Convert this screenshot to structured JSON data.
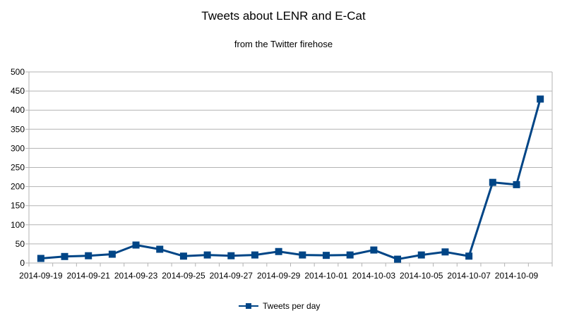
{
  "chart_data": {
    "type": "line",
    "title": "Tweets about LENR and E-Cat",
    "subtitle": "from the Twitter firehose",
    "xlabel": "",
    "ylabel": "",
    "ylim": [
      0,
      500
    ],
    "yticks": [
      0,
      50,
      100,
      150,
      200,
      250,
      300,
      350,
      400,
      450,
      500
    ],
    "grid": true,
    "legend_position": "bottom",
    "x": [
      "2014-09-19",
      "2014-09-20",
      "2014-09-21",
      "2014-09-22",
      "2014-09-23",
      "2014-09-24",
      "2014-09-25",
      "2014-09-26",
      "2014-09-27",
      "2014-09-28",
      "2014-09-29",
      "2014-09-30",
      "2014-10-01",
      "2014-10-02",
      "2014-10-03",
      "2014-10-04",
      "2014-10-05",
      "2014-10-06",
      "2014-10-07",
      "2014-10-08",
      "2014-10-09",
      "2014-10-10"
    ],
    "xtick_labels": [
      "2014-09-19",
      "2014-09-21",
      "2014-09-23",
      "2014-09-25",
      "2014-09-27",
      "2014-09-29",
      "2014-10-01",
      "2014-10-03",
      "2014-10-05",
      "2014-10-07",
      "2014-10-09"
    ],
    "series": [
      {
        "name": "Tweets per day",
        "color": "#004586",
        "marker": "square",
        "values": [
          12,
          17,
          19,
          23,
          47,
          36,
          18,
          21,
          19,
          21,
          30,
          21,
          20,
          21,
          34,
          10,
          21,
          29,
          18,
          211,
          205,
          429
        ]
      }
    ]
  }
}
